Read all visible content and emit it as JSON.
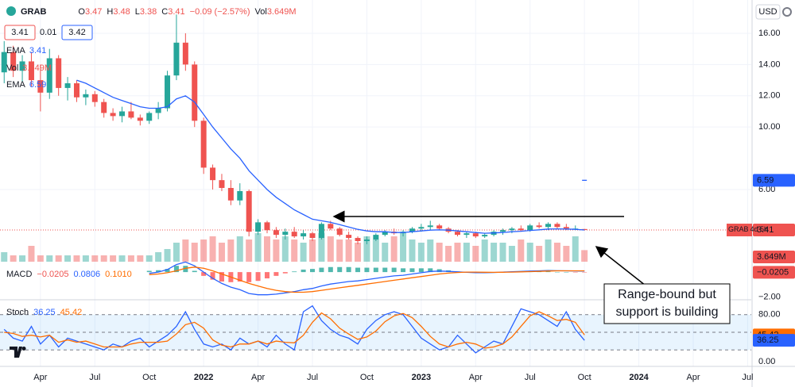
{
  "header": {
    "symbol": "GRAB",
    "ohlc_labels": [
      "O",
      "H",
      "L",
      "C"
    ],
    "change": "−0.09 (−2.57%)",
    "currency": "USD"
  },
  "legend": {
    "bid": 3.41,
    "spread": 0.01,
    "ask": 3.42
  },
  "annotation": {
    "lines": [
      "Range-bound but",
      "support is building"
    ]
  },
  "chart_data": [
    {
      "type": "candlestick",
      "x": [
        1,
        1.5,
        2,
        2.5,
        3,
        3.5,
        4,
        4.5,
        5,
        5.5,
        6,
        6.5,
        7,
        7.5,
        8,
        8.5,
        9,
        9.5,
        10,
        10.5,
        11,
        11.5,
        12,
        12.5,
        13,
        13.5,
        14,
        14.5,
        15,
        15.5,
        16,
        16.5,
        17,
        17.5,
        18,
        18.5,
        19,
        19.5,
        20,
        20.5,
        21,
        21.5,
        22,
        22.5,
        23,
        23.5,
        24,
        24.5,
        25,
        25.5,
        26,
        26.5,
        27,
        27.5,
        28,
        28.5,
        29,
        29.5,
        30,
        30.5,
        31,
        31.5,
        32,
        32.5,
        33
      ],
      "open": [
        13.5,
        14.8,
        13.6,
        14.2,
        13.0,
        12.2,
        14.4,
        12.5,
        12.8,
        11.9,
        12.1,
        11.6,
        10.9,
        10.7,
        11.0,
        10.6,
        10.4,
        10.9,
        11.2,
        13.3,
        15.4,
        14.0,
        10.4,
        7.4,
        6.6,
        6.1,
        5.3,
        5.9,
        3.3,
        3.9,
        3.4,
        3.1,
        3.3,
        3.0,
        3.2,
        2.9,
        3.8,
        3.5,
        3.1,
        2.9,
        2.7,
        2.8,
        3.1,
        3.3,
        3.2,
        3.3,
        3.5,
        3.6,
        3.7,
        3.5,
        3.3,
        3.1,
        3.2,
        3.0,
        3.1,
        3.3,
        3.4,
        3.5,
        3.4,
        3.7,
        3.6,
        3.8,
        3.6,
        3.5,
        3.47
      ],
      "high": [
        15.5,
        15.2,
        14.6,
        14.8,
        14.0,
        15.0,
        14.6,
        13.2,
        13.0,
        12.4,
        12.3,
        11.8,
        11.2,
        11.3,
        11.6,
        10.8,
        11.0,
        11.6,
        13.6,
        17.2,
        16.0,
        14.2,
        10.6,
        7.6,
        7.0,
        6.6,
        6.4,
        6.0,
        4.1,
        4.0,
        3.6,
        3.5,
        3.6,
        3.4,
        3.3,
        3.9,
        4.0,
        3.6,
        3.3,
        3.0,
        3.0,
        3.2,
        3.4,
        3.5,
        3.4,
        3.6,
        3.8,
        4.0,
        3.8,
        3.6,
        3.4,
        3.3,
        3.3,
        3.2,
        3.4,
        3.5,
        3.6,
        3.7,
        3.8,
        3.9,
        3.9,
        3.9,
        3.8,
        3.7,
        3.48
      ],
      "low": [
        12.8,
        13.2,
        12.9,
        12.6,
        11.0,
        11.8,
        12.0,
        11.7,
        11.6,
        11.4,
        11.3,
        10.6,
        10.4,
        10.3,
        10.5,
        10.1,
        10.2,
        10.5,
        11.0,
        13.0,
        13.6,
        10.0,
        7.0,
        6.0,
        5.9,
        5.0,
        5.0,
        3.0,
        3.1,
        3.2,
        2.9,
        2.8,
        2.9,
        2.8,
        2.7,
        2.8,
        3.4,
        3.0,
        2.8,
        2.5,
        2.5,
        2.7,
        3.0,
        3.1,
        3.0,
        3.2,
        3.3,
        3.4,
        3.4,
        3.2,
        3.0,
        2.9,
        2.9,
        2.9,
        3.0,
        3.1,
        3.2,
        3.3,
        3.3,
        3.5,
        3.4,
        3.5,
        3.4,
        3.4,
        3.38
      ],
      "close": [
        14.8,
        13.6,
        14.2,
        13.0,
        12.2,
        14.4,
        12.5,
        12.8,
        11.9,
        12.1,
        11.6,
        10.9,
        10.7,
        11.0,
        10.6,
        10.4,
        10.9,
        11.2,
        13.3,
        15.4,
        14.0,
        10.4,
        7.4,
        6.6,
        6.1,
        5.3,
        5.9,
        3.3,
        3.9,
        3.4,
        3.1,
        3.3,
        3.0,
        3.2,
        2.9,
        3.8,
        3.5,
        3.1,
        2.9,
        2.7,
        2.8,
        3.1,
        3.3,
        3.2,
        3.3,
        3.5,
        3.6,
        3.7,
        3.5,
        3.3,
        3.1,
        3.2,
        3.0,
        3.1,
        3.3,
        3.4,
        3.5,
        3.4,
        3.7,
        3.6,
        3.8,
        3.6,
        3.5,
        3.5,
        3.41
      ],
      "up_color": "#26a69a",
      "down_color": "#ef5350",
      "xlim": [
        0.77,
        42.2
      ],
      "xticks": [
        {
          "value": 3,
          "label": "Apr"
        },
        {
          "value": 6,
          "label": "Jul"
        },
        {
          "value": 9,
          "label": "Oct"
        },
        {
          "value": 12,
          "label": "2022"
        },
        {
          "value": 15,
          "label": "Apr"
        },
        {
          "value": 18,
          "label": "Jul"
        },
        {
          "value": 21,
          "label": "Oct"
        },
        {
          "value": 24,
          "label": "2023"
        },
        {
          "value": 27,
          "label": "Apr"
        },
        {
          "value": 30,
          "label": "Jul"
        },
        {
          "value": 33,
          "label": "Oct"
        },
        {
          "value": 36,
          "label": "2024"
        },
        {
          "value": 39,
          "label": "Apr"
        },
        {
          "value": 42,
          "label": "Jul"
        }
      ],
      "ylim": [
        1.38,
        18.13
      ],
      "yticks": [
        {
          "value": 16,
          "label": "16.00"
        },
        {
          "value": 14,
          "label": "14.00"
        },
        {
          "value": 12,
          "label": "12.00"
        },
        {
          "value": 10,
          "label": "10.00"
        },
        {
          "value": 6,
          "label": "6.00"
        }
      ],
      "grid": true,
      "countdown": "4d 5h",
      "series": [
        {
          "name": "EMA",
          "color": "#2962ff",
          "values": [
            null,
            null,
            null,
            null,
            null,
            null,
            null,
            null,
            13.0,
            12.8,
            12.5,
            12.2,
            11.9,
            11.7,
            11.5,
            11.3,
            11.2,
            11.2,
            11.3,
            11.8,
            12.0,
            11.6,
            10.8,
            10.0,
            9.3,
            8.6,
            8.0,
            7.2,
            6.6,
            6.0,
            5.5,
            5.1,
            4.7,
            4.4,
            4.1,
            4.0,
            3.9,
            3.75,
            3.6,
            3.45,
            3.35,
            3.3,
            3.3,
            3.25,
            3.25,
            3.3,
            3.35,
            3.4,
            3.42,
            3.4,
            3.35,
            3.3,
            3.25,
            3.2,
            3.22,
            3.25,
            3.3,
            3.33,
            3.38,
            3.42,
            3.47,
            3.48,
            3.47,
            3.45,
            3.41
          ]
        }
      ],
      "ema_long": {
        "name": "EMA",
        "color": "#2962ff",
        "value": 6.59
      },
      "volume": {
        "name": "Vol",
        "values": [
          3,
          2,
          2,
          5,
          2,
          2,
          2,
          2,
          2,
          2,
          2,
          2,
          2,
          2,
          2,
          2,
          2,
          3,
          4,
          6,
          7,
          6,
          7,
          8,
          6,
          7,
          8,
          7,
          9,
          8,
          7,
          8,
          7,
          6,
          7,
          9,
          8,
          7,
          7,
          6,
          8,
          7,
          6,
          8,
          9,
          7,
          6,
          7,
          6,
          5,
          6,
          6,
          5,
          7,
          6,
          6,
          5,
          7,
          6,
          5,
          7,
          6,
          5,
          8,
          3.649
        ],
        "last_label": "3.649M"
      }
    },
    {
      "type": "macd",
      "title": "MACD",
      "ylim": [
        -2.2,
        0.7
      ],
      "yticks": [
        {
          "value": -2,
          "label": "−2.00"
        }
      ],
      "histogram": {
        "pos_color": "#26a69a",
        "neg_color": "#ff5252",
        "last_label": "−0.0205",
        "values": [
          null,
          null,
          null,
          null,
          null,
          null,
          null,
          null,
          null,
          null,
          null,
          null,
          null,
          null,
          null,
          null,
          0.1,
          0.15,
          0.25,
          0.5,
          0.5,
          0.1,
          -0.3,
          -0.6,
          -0.75,
          -0.8,
          -0.75,
          -0.8,
          -0.7,
          -0.5,
          -0.3,
          -0.1,
          0.05,
          0.2,
          0.25,
          0.35,
          0.4,
          0.4,
          0.4,
          0.35,
          0.35,
          0.35,
          0.35,
          0.35,
          0.3,
          0.3,
          0.3,
          0.3,
          0.23,
          0.14,
          0.05,
          -0.02,
          -0.05,
          -0.04,
          -0.01,
          0.01,
          0.03,
          0.03,
          0.04,
          0.04,
          0.04,
          0.01,
          0.0,
          -0.01,
          -0.0205
        ]
      },
      "series": [
        {
          "color": "#2962ff",
          "values": [
            null,
            null,
            null,
            null,
            null,
            null,
            null,
            null,
            null,
            null,
            null,
            null,
            null,
            null,
            null,
            null,
            -0.1,
            0,
            0.2,
            0.6,
            0.8,
            0.5,
            0,
            -0.5,
            -0.9,
            -1.2,
            -1.4,
            -1.7,
            -1.8,
            -1.8,
            -1.75,
            -1.65,
            -1.55,
            -1.4,
            -1.3,
            -1.1,
            -0.95,
            -0.85,
            -0.75,
            -0.7,
            -0.6,
            -0.5,
            -0.4,
            -0.3,
            -0.25,
            -0.15,
            -0.05,
            0.05,
            0.08,
            0.06,
            0.02,
            -0.02,
            -0.05,
            -0.05,
            -0.03,
            0.0,
            0.03,
            0.05,
            0.08,
            0.1,
            0.12,
            0.11,
            0.1,
            0.09,
            0.0806
          ]
        },
        {
          "color": "#ff6d00",
          "last_label": "0.1010",
          "values": [
            null,
            null,
            null,
            null,
            null,
            null,
            null,
            null,
            null,
            null,
            null,
            null,
            null,
            null,
            null,
            null,
            -0.2,
            -0.15,
            -0.05,
            0.1,
            0.3,
            0.4,
            0.3,
            0.1,
            -0.15,
            -0.4,
            -0.65,
            -0.9,
            -1.1,
            -1.3,
            -1.45,
            -1.55,
            -1.6,
            -1.6,
            -1.55,
            -1.45,
            -1.35,
            -1.25,
            -1.15,
            -1.05,
            -0.95,
            -0.85,
            -0.75,
            -0.65,
            -0.55,
            -0.45,
            -0.35,
            -0.25,
            -0.15,
            -0.08,
            -0.03,
            0.0,
            0.0,
            -0.01,
            -0.02,
            -0.01,
            0.0,
            0.02,
            0.04,
            0.06,
            0.08,
            0.1,
            0.1,
            0.1,
            0.101
          ]
        }
      ]
    },
    {
      "type": "stochastic",
      "title": "Stoch",
      "ylim": [
        0,
        100
      ],
      "yticks": [
        {
          "value": 0,
          "label": "0.00"
        },
        {
          "value": 80,
          "label": "80.00"
        }
      ],
      "bands": [
        20,
        50,
        80
      ],
      "series": [
        {
          "color": "#2962ff",
          "values": [
            55,
            40,
            35,
            60,
            30,
            45,
            25,
            40,
            35,
            30,
            25,
            20,
            30,
            25,
            35,
            40,
            25,
            35,
            45,
            60,
            85,
            55,
            30,
            25,
            30,
            20,
            40,
            30,
            35,
            25,
            45,
            30,
            20,
            85,
            95,
            70,
            55,
            45,
            40,
            30,
            55,
            70,
            80,
            85,
            80,
            60,
            40,
            30,
            20,
            25,
            45,
            30,
            15,
            25,
            35,
            30,
            60,
            90,
            85,
            80,
            70,
            60,
            85,
            55,
            36.25
          ]
        },
        {
          "color": "#ff6d00",
          "values": [
            50,
            48,
            43,
            45,
            42,
            45,
            33,
            37,
            33,
            35,
            30,
            25,
            25,
            25,
            30,
            33,
            33,
            33,
            35,
            47,
            63,
            67,
            57,
            37,
            28,
            25,
            30,
            30,
            35,
            30,
            35,
            33,
            32,
            45,
            67,
            83,
            73,
            57,
            47,
            38,
            42,
            52,
            68,
            78,
            82,
            75,
            60,
            43,
            30,
            25,
            30,
            33,
            30,
            23,
            25,
            30,
            42,
            60,
            78,
            85,
            78,
            70,
            72,
            67,
            45.42
          ]
        }
      ]
    }
  ]
}
